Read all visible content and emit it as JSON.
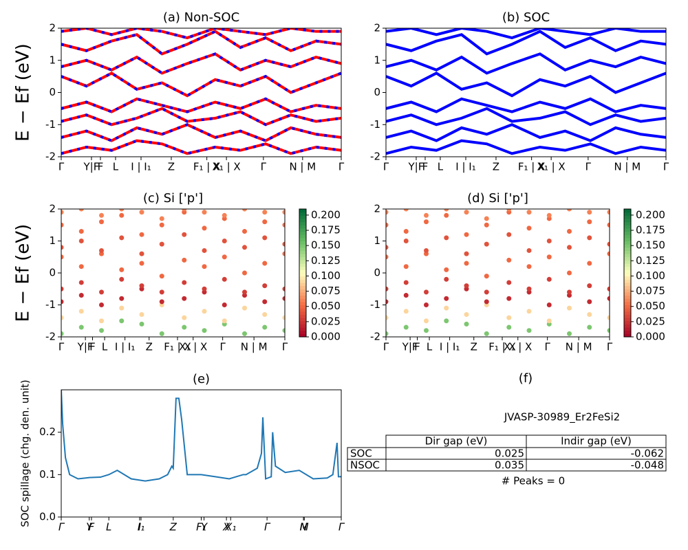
{
  "chart_data": [
    {
      "type": "line",
      "title": "(a) Non-SOC",
      "ylabel": "E − Ef (eV)",
      "xlim": [
        0,
        1
      ],
      "ylim": [
        -2,
        2
      ],
      "yticks": [
        -2,
        -1,
        0,
        1,
        2
      ],
      "xticks": [
        {
          "value": 0,
          "label": "Γ"
        },
        {
          "value": 0.108,
          "label": "Y|F"
        },
        {
          "value": 0.14,
          "label": "F"
        },
        {
          "value": 0.194,
          "label": "L"
        },
        {
          "value": 0.285,
          "label": "I | I₁"
        },
        {
          "value": 0.393,
          "label": "Z"
        },
        {
          "value": 0.52,
          "label": "F₁ | X"
        },
        {
          "value": 0.59,
          "label": "X₁ | X"
        },
        {
          "value": 0.722,
          "label": "Γ"
        },
        {
          "value": 0.862,
          "label": "N | M"
        },
        {
          "value": 1,
          "label": "Γ"
        }
      ],
      "color": "#ff0000",
      "dash_color": "#0000ff",
      "x": [
        0,
        0.09,
        0.18,
        0.27,
        0.36,
        0.45,
        0.55,
        0.64,
        0.73,
        0.82,
        0.91,
        1
      ],
      "bands": [
        {
          "values": [
            -1.9,
            -1.7,
            -1.8,
            -1.5,
            -1.6,
            -1.9,
            -1.7,
            -1.8,
            -1.6,
            -1.9,
            -1.7,
            -1.8
          ]
        },
        {
          "values": [
            -1.4,
            -1.2,
            -1.5,
            -1.1,
            -1.3,
            -1.0,
            -1.4,
            -1.2,
            -1.5,
            -1.1,
            -1.3,
            -1.4
          ]
        },
        {
          "values": [
            -0.9,
            -0.7,
            -1.0,
            -0.8,
            -0.5,
            -0.9,
            -0.8,
            -0.6,
            -1.0,
            -0.7,
            -0.9,
            -0.8
          ]
        },
        {
          "values": [
            -0.5,
            -0.3,
            -0.6,
            -0.2,
            -0.4,
            -0.6,
            -0.3,
            -0.5,
            -0.2,
            -0.6,
            -0.4,
            -0.5
          ]
        },
        {
          "values": [
            0.5,
            0.2,
            0.6,
            0.1,
            0.3,
            -0.1,
            0.4,
            0.2,
            0.5,
            0.0,
            0.3,
            0.6
          ]
        },
        {
          "values": [
            0.8,
            1.0,
            0.7,
            1.1,
            0.6,
            0.9,
            1.2,
            0.7,
            1.0,
            0.8,
            1.1,
            0.9
          ]
        },
        {
          "values": [
            1.5,
            1.3,
            1.6,
            1.8,
            1.2,
            1.5,
            1.9,
            1.4,
            1.7,
            1.3,
            1.6,
            1.5
          ]
        },
        {
          "values": [
            1.9,
            2.0,
            1.8,
            2.0,
            1.9,
            1.7,
            2.0,
            1.9,
            1.8,
            2.0,
            1.9,
            1.9
          ]
        }
      ]
    },
    {
      "type": "line",
      "title": "(b) SOC",
      "xlim": [
        0,
        1
      ],
      "ylim": [
        -2,
        2
      ],
      "yticks": [
        -2,
        -1,
        0,
        1,
        2
      ],
      "xticks": [
        {
          "value": 0,
          "label": "Γ"
        },
        {
          "value": 0.108,
          "label": "Y|F"
        },
        {
          "value": 0.14,
          "label": "F"
        },
        {
          "value": 0.194,
          "label": "L"
        },
        {
          "value": 0.285,
          "label": "I | I₁"
        },
        {
          "value": 0.393,
          "label": "Z"
        },
        {
          "value": 0.52,
          "label": "F₁ | X"
        },
        {
          "value": 0.59,
          "label": "X₁ | X"
        },
        {
          "value": 0.722,
          "label": "Γ"
        },
        {
          "value": 0.862,
          "label": "N | M"
        },
        {
          "value": 1,
          "label": "Γ"
        }
      ],
      "color": "#0000ff",
      "x": [
        0,
        0.09,
        0.18,
        0.27,
        0.36,
        0.45,
        0.55,
        0.64,
        0.73,
        0.82,
        0.91,
        1
      ],
      "bands": [
        {
          "values": [
            -1.9,
            -1.7,
            -1.8,
            -1.5,
            -1.6,
            -1.9,
            -1.7,
            -1.8,
            -1.6,
            -1.9,
            -1.7,
            -1.8
          ]
        },
        {
          "values": [
            -1.4,
            -1.2,
            -1.5,
            -1.1,
            -1.3,
            -1.0,
            -1.4,
            -1.2,
            -1.5,
            -1.1,
            -1.3,
            -1.4
          ]
        },
        {
          "values": [
            -0.9,
            -0.7,
            -1.0,
            -0.8,
            -0.5,
            -0.9,
            -0.8,
            -0.6,
            -1.0,
            -0.7,
            -0.9,
            -0.8
          ]
        },
        {
          "values": [
            -0.5,
            -0.3,
            -0.6,
            -0.2,
            -0.4,
            -0.6,
            -0.3,
            -0.5,
            -0.2,
            -0.6,
            -0.4,
            -0.5
          ]
        },
        {
          "values": [
            0.5,
            0.2,
            0.6,
            0.1,
            0.3,
            -0.1,
            0.4,
            0.2,
            0.5,
            0.0,
            0.3,
            0.6
          ]
        },
        {
          "values": [
            0.8,
            1.0,
            0.7,
            1.1,
            0.6,
            0.9,
            1.2,
            0.7,
            1.0,
            0.8,
            1.1,
            0.9
          ]
        },
        {
          "values": [
            1.5,
            1.3,
            1.6,
            1.8,
            1.2,
            1.5,
            1.9,
            1.4,
            1.7,
            1.3,
            1.6,
            1.5
          ]
        },
        {
          "values": [
            1.9,
            2.0,
            1.8,
            2.0,
            1.9,
            1.7,
            2.0,
            1.9,
            1.8,
            2.0,
            1.9,
            1.9
          ]
        }
      ]
    },
    {
      "type": "scatter",
      "title": "(c)  Si ['p']",
      "ylabel": "E − Ef (eV)",
      "xlim": [
        0,
        1
      ],
      "ylim": [
        -2,
        2
      ],
      "yticks": [
        -2,
        -1,
        0,
        1,
        2
      ],
      "xticks": [
        {
          "value": 0,
          "label": "Γ"
        },
        {
          "value": 0.108,
          "label": "Y|F"
        },
        {
          "value": 0.14,
          "label": "F"
        },
        {
          "value": 0.194,
          "label": "L"
        },
        {
          "value": 0.285,
          "label": "I | I₁"
        },
        {
          "value": 0.393,
          "label": "Z"
        },
        {
          "value": 0.52,
          "label": "F₁ | X"
        },
        {
          "value": 0.59,
          "label": "X₁ | X"
        },
        {
          "value": 0.722,
          "label": "Γ"
        },
        {
          "value": 0.862,
          "label": "N | M"
        },
        {
          "value": 1,
          "label": "Γ"
        }
      ],
      "cmap": "RdYlGn",
      "clim": [
        0,
        0.21
      ],
      "cticks": [
        {
          "value": 0,
          "label": "0.000"
        },
        {
          "value": 0.025,
          "label": "0.025"
        },
        {
          "value": 0.05,
          "label": "0.050"
        },
        {
          "value": 0.075,
          "label": "0.075"
        },
        {
          "value": 0.1,
          "label": "0.100"
        },
        {
          "value": 0.125,
          "label": "0.125"
        },
        {
          "value": 0.15,
          "label": "0.150"
        },
        {
          "value": 0.175,
          "label": "0.175"
        },
        {
          "value": 0.2,
          "label": "0.200"
        }
      ],
      "x": [
        0,
        0.09,
        0.18,
        0.27,
        0.36,
        0.45,
        0.55,
        0.64,
        0.73,
        0.82,
        0.91,
        1
      ],
      "bands": [
        {
          "weight": 0.15,
          "values": [
            -1.9,
            -1.7,
            -1.8,
            -1.5,
            -1.6,
            -1.9,
            -1.7,
            -1.8,
            -1.6,
            -1.9,
            -1.7,
            -1.8
          ]
        },
        {
          "weight": 0.09,
          "values": [
            -1.4,
            -1.2,
            -1.5,
            -1.1,
            -1.3,
            -1.0,
            -1.4,
            -1.2,
            -1.5,
            -1.1,
            -1.3,
            -1.4
          ]
        },
        {
          "weight": 0.02,
          "values": [
            -0.9,
            -0.7,
            -1.0,
            -0.8,
            -0.5,
            -0.9,
            -0.8,
            -0.6,
            -1.0,
            -0.7,
            -0.9,
            -0.8
          ]
        },
        {
          "weight": 0.03,
          "values": [
            -0.5,
            -0.3,
            -0.6,
            -0.2,
            -0.4,
            -0.6,
            -0.3,
            -0.5,
            -0.2,
            -0.6,
            -0.4,
            -0.5
          ]
        },
        {
          "weight": 0.05,
          "values": [
            0.5,
            0.2,
            0.6,
            0.1,
            0.3,
            -0.1,
            0.4,
            0.2,
            0.5,
            0.0,
            0.3,
            0.6
          ]
        },
        {
          "weight": 0.04,
          "values": [
            0.8,
            1.0,
            0.7,
            1.1,
            0.6,
            0.9,
            1.2,
            0.7,
            1.0,
            0.8,
            1.1,
            0.9
          ]
        },
        {
          "weight": 0.05,
          "values": [
            1.5,
            1.3,
            1.6,
            1.8,
            1.2,
            1.5,
            1.9,
            1.4,
            1.7,
            1.3,
            1.6,
            1.5
          ]
        },
        {
          "weight": 0.06,
          "values": [
            1.9,
            2.0,
            1.8,
            2.0,
            1.9,
            1.7,
            2.0,
            1.9,
            1.8,
            2.0,
            1.9,
            1.9
          ]
        }
      ]
    },
    {
      "type": "scatter",
      "title": "(d) Si ['p']",
      "xlim": [
        0,
        1
      ],
      "ylim": [
        -2,
        2
      ],
      "yticks": [
        -2,
        -1,
        0,
        1,
        2
      ],
      "xticks": [
        {
          "value": 0,
          "label": "Γ"
        },
        {
          "value": 0.108,
          "label": "Y|F"
        },
        {
          "value": 0.14,
          "label": "F"
        },
        {
          "value": 0.194,
          "label": "L"
        },
        {
          "value": 0.285,
          "label": "I | I₁"
        },
        {
          "value": 0.393,
          "label": "Z"
        },
        {
          "value": 0.52,
          "label": "F₁ | X"
        },
        {
          "value": 0.59,
          "label": "X₁ | X"
        },
        {
          "value": 0.722,
          "label": "Γ"
        },
        {
          "value": 0.862,
          "label": "N | M"
        },
        {
          "value": 1,
          "label": "Γ"
        }
      ],
      "cmap": "RdYlGn",
      "clim": [
        0,
        0.21
      ],
      "cticks": [
        {
          "value": 0,
          "label": "0.000"
        },
        {
          "value": 0.025,
          "label": "0.025"
        },
        {
          "value": 0.05,
          "label": "0.050"
        },
        {
          "value": 0.075,
          "label": "0.075"
        },
        {
          "value": 0.1,
          "label": "0.100"
        },
        {
          "value": 0.125,
          "label": "0.125"
        },
        {
          "value": 0.15,
          "label": "0.150"
        },
        {
          "value": 0.175,
          "label": "0.175"
        },
        {
          "value": 0.2,
          "label": "0.200"
        }
      ],
      "x": [
        0,
        0.09,
        0.18,
        0.27,
        0.36,
        0.45,
        0.55,
        0.64,
        0.73,
        0.82,
        0.91,
        1
      ],
      "bands": [
        {
          "weight": 0.15,
          "values": [
            -1.9,
            -1.7,
            -1.8,
            -1.5,
            -1.6,
            -1.9,
            -1.7,
            -1.8,
            -1.6,
            -1.9,
            -1.7,
            -1.8
          ]
        },
        {
          "weight": 0.09,
          "values": [
            -1.4,
            -1.2,
            -1.5,
            -1.1,
            -1.3,
            -1.0,
            -1.4,
            -1.2,
            -1.5,
            -1.1,
            -1.3,
            -1.4
          ]
        },
        {
          "weight": 0.02,
          "values": [
            -0.9,
            -0.7,
            -1.0,
            -0.8,
            -0.5,
            -0.9,
            -0.8,
            -0.6,
            -1.0,
            -0.7,
            -0.9,
            -0.8
          ]
        },
        {
          "weight": 0.03,
          "values": [
            -0.5,
            -0.3,
            -0.6,
            -0.2,
            -0.4,
            -0.6,
            -0.3,
            -0.5,
            -0.2,
            -0.6,
            -0.4,
            -0.5
          ]
        },
        {
          "weight": 0.05,
          "values": [
            0.5,
            0.2,
            0.6,
            0.1,
            0.3,
            -0.1,
            0.4,
            0.2,
            0.5,
            0.0,
            0.3,
            0.6
          ]
        },
        {
          "weight": 0.04,
          "values": [
            0.8,
            1.0,
            0.7,
            1.1,
            0.6,
            0.9,
            1.2,
            0.7,
            1.0,
            0.8,
            1.1,
            0.9
          ]
        },
        {
          "weight": 0.05,
          "values": [
            1.5,
            1.3,
            1.6,
            1.8,
            1.2,
            1.5,
            1.9,
            1.4,
            1.7,
            1.3,
            1.6,
            1.5
          ]
        },
        {
          "weight": 0.06,
          "values": [
            1.9,
            2.0,
            1.8,
            2.0,
            1.9,
            1.7,
            2.0,
            1.9,
            1.8,
            2.0,
            1.9,
            1.9
          ]
        }
      ]
    },
    {
      "type": "spillage",
      "title": "(e)",
      "ylabel": "SOC spillage (chg. den. unit)",
      "xlim": [
        0,
        1
      ],
      "ylim": [
        0,
        0.3
      ],
      "yticks": [
        {
          "value": 0,
          "label": "0.0"
        },
        0.1,
        0.2
      ],
      "color": "#1f77b4",
      "xticks": [
        {
          "value": 0,
          "label": "Γ"
        },
        {
          "value": 0.1,
          "label": "Y"
        },
        {
          "value": 0.108,
          "label": "F"
        },
        {
          "value": 0.17,
          "label": "L"
        },
        {
          "value": 0.28,
          "label": "I"
        },
        {
          "value": 0.285,
          "label": "I₁"
        },
        {
          "value": 0.4,
          "label": "Z"
        },
        {
          "value": 0.5,
          "label": "F₁"
        },
        {
          "value": 0.51,
          "label": "Y"
        },
        {
          "value": 0.59,
          "label": "X"
        },
        {
          "value": 0.605,
          "label": "X₁"
        },
        {
          "value": 0.735,
          "label": "Γ"
        },
        {
          "value": 0.865,
          "label": "N"
        },
        {
          "value": 0.868,
          "label": "M"
        },
        {
          "value": 1,
          "label": "Γ"
        }
      ],
      "x": [
        0,
        0.005,
        0.015,
        0.03,
        0.06,
        0.1,
        0.14,
        0.17,
        0.2,
        0.25,
        0.3,
        0.35,
        0.38,
        0.395,
        0.4,
        0.41,
        0.42,
        0.43,
        0.45,
        0.5,
        0.55,
        0.6,
        0.65,
        0.66,
        0.7,
        0.715,
        0.72,
        0.73,
        0.75,
        0.755,
        0.765,
        0.8,
        0.85,
        0.9,
        0.95,
        0.97,
        0.985,
        0.99,
        1
      ],
      "values": [
        0.3,
        0.22,
        0.14,
        0.1,
        0.09,
        0.093,
        0.094,
        0.1,
        0.11,
        0.09,
        0.085,
        0.09,
        0.1,
        0.12,
        0.115,
        0.28,
        0.28,
        0.23,
        0.1,
        0.1,
        0.095,
        0.09,
        0.1,
        0.1,
        0.115,
        0.15,
        0.235,
        0.09,
        0.095,
        0.2,
        0.12,
        0.105,
        0.11,
        0.09,
        0.092,
        0.1,
        0.175,
        0.095,
        0.095
      ]
    },
    {
      "type": "table",
      "title": "(f)",
      "subtitle": "JVASP-30989_Er2FeSi2",
      "columns": [
        "Dir gap (eV)",
        "Indir gap (eV)"
      ],
      "rows": [
        [
          "SOC",
          "0.025",
          "-0.062"
        ],
        [
          "NSOC",
          "0.035",
          "-0.048"
        ]
      ],
      "note": "# Peaks = 0"
    }
  ]
}
